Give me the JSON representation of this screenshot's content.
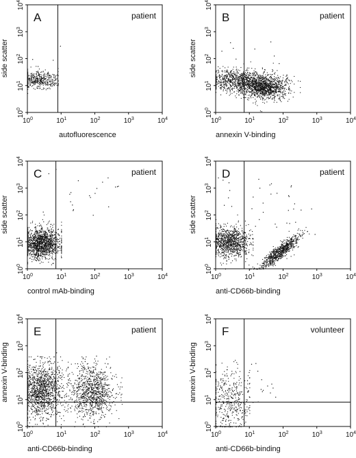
{
  "figure": {
    "panels": [
      {
        "letter": "A",
        "tag": "patient",
        "xlabel": "autofluorescence",
        "ylabel": "side scatter"
      },
      {
        "letter": "B",
        "tag": "patient",
        "xlabel": "annexin V-binding",
        "ylabel": "side scatter"
      },
      {
        "letter": "C",
        "tag": "patient",
        "xlabel": "control mAb-binding",
        "ylabel": "side scatter"
      },
      {
        "letter": "D",
        "tag": "patient",
        "xlabel": "anti-CD66b-binding",
        "ylabel": "side scatter"
      },
      {
        "letter": "E",
        "tag": "patient",
        "xlabel": "anti-CD66b-binding",
        "ylabel": "annexin V-binding"
      },
      {
        "letter": "F",
        "tag": "volunteer",
        "xlabel": "anti-CD66b-binding",
        "ylabel": "annexin V-binding"
      }
    ]
  },
  "chart_data": [
    {
      "panel": "A",
      "type": "scatter",
      "title": "patient",
      "xlabel": "autofluorescence",
      "ylabel": "side scatter",
      "xscale": "log",
      "yscale": "log",
      "xlim": [
        1,
        10000
      ],
      "ylim": [
        1,
        10000
      ],
      "tick_labels": [
        "10^0",
        "10^1",
        "10^2",
        "10^3",
        "10^4"
      ],
      "gates": {
        "vertical_x": 8
      },
      "populations": [
        {
          "n": 420,
          "x_log_mean": 0.35,
          "x_log_sd": 0.28,
          "x_log_range": [
            0,
            0.9
          ],
          "y_log_mean": 1.2,
          "y_log_sd": 0.16,
          "y_log_range": [
            0,
            2.5
          ]
        }
      ],
      "sparse_events": {
        "n": 4,
        "x_log_range": [
          0,
          1.0
        ],
        "y_log_range": [
          1.5,
          2.5
        ]
      }
    },
    {
      "panel": "B",
      "type": "scatter",
      "title": "patient",
      "xlabel": "annexin V-binding",
      "ylabel": "side scatter",
      "xscale": "log",
      "yscale": "log",
      "xlim": [
        1,
        10000
      ],
      "ylim": [
        1,
        10000
      ],
      "tick_labels": [
        "10^0",
        "10^1",
        "10^2",
        "10^3",
        "10^4"
      ],
      "gates": {
        "vertical_x": 7
      },
      "populations": [
        {
          "n": 900,
          "x_log_mean": 0.7,
          "x_log_sd": 0.45,
          "x_log_range": [
            0,
            2.4
          ],
          "y_log_mean": 1.2,
          "y_log_sd": 0.22,
          "y_log_range": [
            0,
            2.3
          ]
        },
        {
          "n": 1100,
          "x_log_mean": 1.45,
          "x_log_sd": 0.35,
          "x_log_range": [
            0.4,
            2.5
          ],
          "y_log_mean": 0.95,
          "y_log_sd": 0.22,
          "y_log_range": [
            0,
            2.2
          ]
        }
      ],
      "sparse_events": {
        "n": 8,
        "x_log_range": [
          0,
          2.3
        ],
        "y_log_range": [
          1.8,
          2.7
        ]
      }
    },
    {
      "panel": "C",
      "type": "scatter",
      "title": "patient",
      "xlabel": "control mAb-binding",
      "ylabel": "side scatter",
      "xscale": "log",
      "yscale": "log",
      "xlim": [
        1,
        10000
      ],
      "ylim": [
        1,
        10000
      ],
      "tick_labels": [
        "10^0",
        "10^1",
        "10^2",
        "10^3",
        "10^4"
      ],
      "gates": {
        "vertical_x": 7
      },
      "populations": [
        {
          "n": 1400,
          "x_log_mean": 0.4,
          "x_log_sd": 0.28,
          "x_log_range": [
            0,
            1.0
          ],
          "y_log_mean": 0.95,
          "y_log_sd": 0.28,
          "y_log_range": [
            0,
            2.2
          ]
        }
      ],
      "sparse_events": {
        "n": 22,
        "x_log_range": [
          0.2,
          2.8
        ],
        "y_log_range": [
          1.5,
          3.8
        ]
      }
    },
    {
      "panel": "D",
      "type": "scatter",
      "title": "patient",
      "xlabel": "anti-CD66b-binding",
      "ylabel": "side scatter",
      "xscale": "log",
      "yscale": "log",
      "xlim": [
        1,
        10000
      ],
      "ylim": [
        1,
        10000
      ],
      "tick_labels": [
        "10^0",
        "10^1",
        "10^2",
        "10^3",
        "10^4"
      ],
      "gates": {
        "vertical_x": 7
      },
      "populations": [
        {
          "n": 1000,
          "x_log_mean": 0.4,
          "x_log_sd": 0.3,
          "x_log_range": [
            0,
            1.1
          ],
          "y_log_mean": 1.0,
          "y_log_sd": 0.28,
          "y_log_range": [
            0,
            2.2
          ]
        },
        {
          "n": 750,
          "x_log_mean": 1.9,
          "x_log_sd": 0.3,
          "x_log_range": [
            0.9,
            2.9
          ],
          "y_log_mean": 0.65,
          "y_log_sd": 0.14,
          "y_log_range": [
            0,
            2.6
          ],
          "slope": 0.95
        }
      ],
      "sparse_events": {
        "n": 38,
        "x_log_range": [
          0,
          3.0
        ],
        "y_log_range": [
          1.2,
          3.8
        ]
      }
    },
    {
      "panel": "E",
      "type": "scatter",
      "title": "patient",
      "xlabel": "anti-CD66b-binding",
      "ylabel": "annexin V-binding",
      "xscale": "log",
      "yscale": "log",
      "xlim": [
        1,
        10000
      ],
      "ylim": [
        1,
        10000
      ],
      "tick_labels": [
        "10^0",
        "10^1",
        "10^2",
        "10^3",
        "10^4"
      ],
      "gates": {
        "vertical_x": 7,
        "horizontal_y": 8
      },
      "populations": [
        {
          "n": 1300,
          "x_log_mean": 0.4,
          "x_log_sd": 0.32,
          "x_log_range": [
            0,
            1.2
          ],
          "y_log_mean": 1.35,
          "y_log_sd": 0.5,
          "y_log_range": [
            0,
            2.6
          ]
        },
        {
          "n": 1000,
          "x_log_mean": 1.9,
          "x_log_sd": 0.32,
          "x_log_range": [
            0.8,
            2.8
          ],
          "y_log_mean": 1.3,
          "y_log_sd": 0.48,
          "y_log_range": [
            0,
            2.6
          ]
        }
      ],
      "sparse_events": {
        "n": 10,
        "x_log_range": [
          0,
          2.8
        ],
        "y_log_range": [
          2.2,
          2.8
        ]
      }
    },
    {
      "panel": "F",
      "type": "scatter",
      "title": "volunteer",
      "xlabel": "anti-CD66b-binding",
      "ylabel": "annexin V-binding",
      "xscale": "log",
      "yscale": "log",
      "xlim": [
        1,
        10000
      ],
      "ylim": [
        1,
        10000
      ],
      "tick_labels": [
        "10^0",
        "10^1",
        "10^2",
        "10^3",
        "10^4"
      ],
      "gates": {
        "vertical_x": 7,
        "horizontal_y": 8
      },
      "populations": [
        {
          "n": 420,
          "x_log_mean": 0.4,
          "x_log_sd": 0.3,
          "x_log_range": [
            0,
            1.0
          ],
          "y_log_mean": 0.95,
          "y_log_sd": 0.6,
          "y_log_range": [
            0,
            2.5
          ]
        }
      ],
      "sparse_events": {
        "n": 18,
        "x_log_range": [
          0.9,
          1.8
        ],
        "y_log_range": [
          0.9,
          2.5
        ]
      }
    }
  ]
}
